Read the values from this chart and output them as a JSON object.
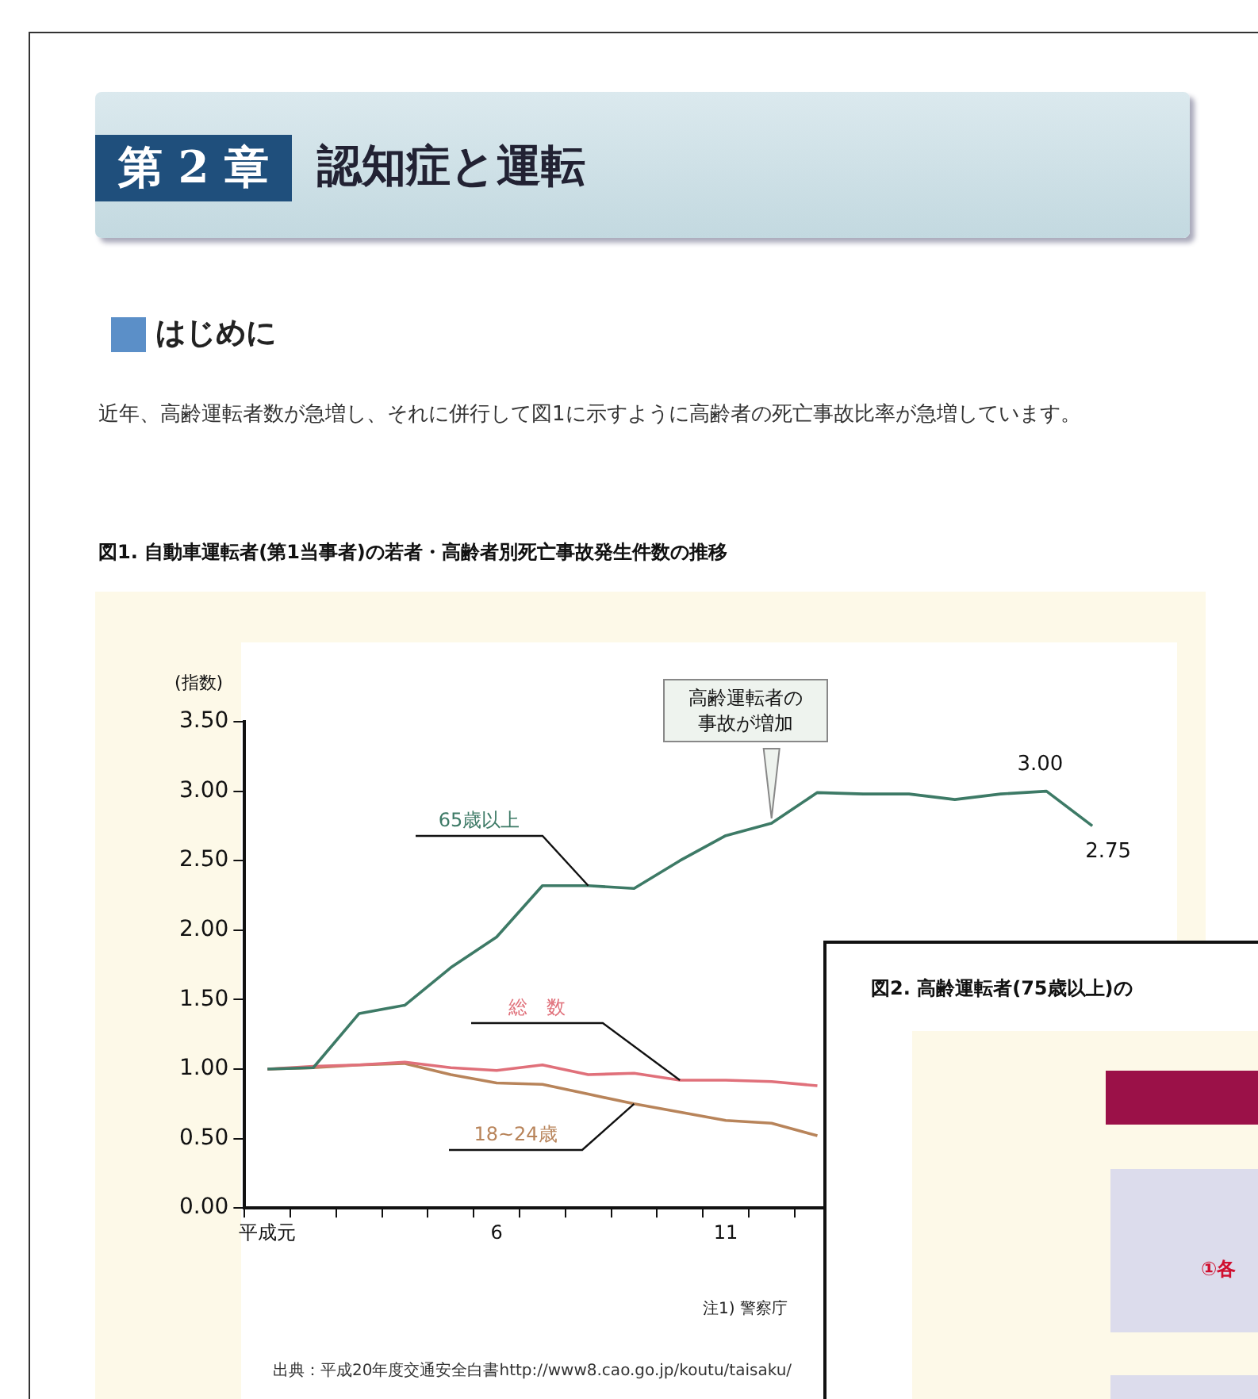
{
  "chart_data": [
    {
      "type": "line",
      "title": "図1. 自動車運転者(第1当事者)の若者・高齢者別死亡事故発生件数の推移",
      "ylabel": "(指数)",
      "categories": [
        "平成元",
        null,
        null,
        null,
        null,
        "6",
        null,
        null,
        null,
        null,
        "11",
        null,
        null,
        null,
        null,
        null,
        null,
        null,
        null
      ],
      "series": [
        {
          "name": "65歳以上",
          "color": "#3d7a66",
          "values": [
            1.0,
            1.01,
            1.4,
            1.46,
            1.73,
            1.95,
            2.32,
            2.32,
            2.3,
            2.5,
            2.68,
            2.77,
            2.99,
            2.98,
            2.98,
            2.94,
            2.98,
            3.0,
            2.75
          ],
          "value_labels": [
            null,
            null,
            null,
            null,
            null,
            null,
            null,
            null,
            null,
            null,
            null,
            null,
            null,
            null,
            null,
            null,
            null,
            "3.00",
            "2.75"
          ]
        },
        {
          "name": "総　数",
          "color": "#e0707a",
          "values": [
            1.0,
            1.02,
            1.03,
            1.05,
            1.01,
            0.99,
            1.03,
            0.96,
            0.97,
            0.92,
            0.92,
            0.91,
            0.88,
            null,
            null,
            null,
            null,
            null,
            null
          ]
        },
        {
          "name": "18~24歳",
          "color": "#b8845a",
          "values": [
            1.0,
            1.01,
            1.03,
            1.04,
            0.96,
            0.9,
            0.89,
            0.82,
            0.75,
            0.69,
            0.63,
            0.61,
            0.52,
            null,
            null,
            null,
            null,
            null,
            null
          ]
        }
      ],
      "ylim": [
        0,
        3.5
      ],
      "yticks": [
        {
          "value": 0,
          "label": "0.00"
        },
        {
          "value": 0.5,
          "label": "0.50"
        },
        {
          "value": 1,
          "label": "1.00"
        },
        {
          "value": 1.5,
          "label": "1.50"
        },
        {
          "value": 2,
          "label": "2.00"
        },
        {
          "value": 2.5,
          "label": "2.50"
        },
        {
          "value": 3,
          "label": "3.00"
        },
        {
          "value": 3.5,
          "label": "3.50"
        }
      ],
      "marker": "none",
      "line_style": "solid",
      "annotations": [
        "第 2 章",
        "認知症と運転",
        "はじめに",
        "近年、高齢運転者数が急増し、それに併行して図1に示すように高齢者の死亡事故比率が急増しています。",
        "高齢運転者の事故が増加",
        "注1) 警察庁",
        "出典：平成20年度交通安全白書http://www8.cao.go.jp/koutu/taisaku/"
      ]
    },
    {
      "type": "other",
      "title": "図2. 高齢運転者(75歳以上)の",
      "annotations": [
        "①各"
      ]
    }
  ]
}
